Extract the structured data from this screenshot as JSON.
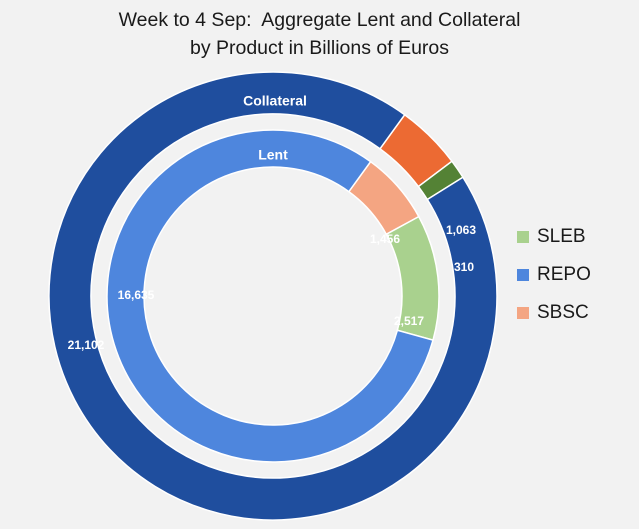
{
  "chart_data": {
    "type": "pie",
    "subtype": "doughnut",
    "title": [
      "Week to 4 Sep:  Aggregate Lent and Collateral",
      "by Product in Billions of Euros"
    ],
    "legend": {
      "position": "right",
      "entries": [
        {
          "name": "SLEB",
          "color": "#a9d18e"
        },
        {
          "name": "REPO",
          "color": "#4e86dd"
        },
        {
          "name": "SBSC",
          "color": "#f4a582"
        }
      ]
    },
    "series": [
      {
        "name": "Collateral",
        "ring": "outer",
        "categories": [
          "SBSC",
          "SLEB",
          "REPO"
        ],
        "values": [
          1063,
          310,
          21102
        ],
        "labels": [
          "1,063",
          "310",
          "21,102"
        ],
        "colors": [
          "#ec6a33",
          "#548235",
          "#1f4e9e"
        ]
      },
      {
        "name": "Lent",
        "ring": "inner",
        "categories": [
          "SBSC",
          "SLEB",
          "REPO"
        ],
        "values": [
          1456,
          2517,
          16635
        ],
        "labels": [
          "1,456",
          "2,517",
          "16,635"
        ],
        "colors": [
          "#f4a582",
          "#a9d18e",
          "#4e86dd"
        ]
      }
    ]
  }
}
